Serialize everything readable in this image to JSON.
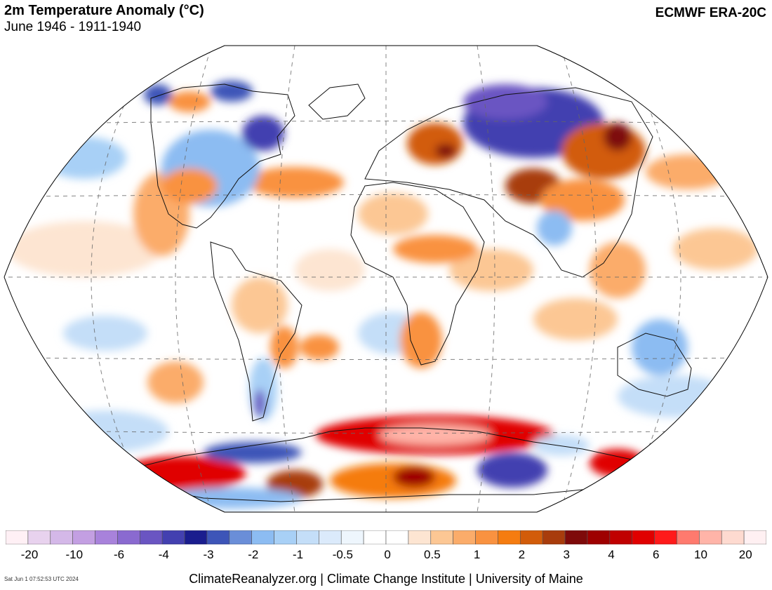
{
  "header": {
    "title": "2m Temperature Anomaly (°C)",
    "subtitle": "June 1946 - 1911-1940",
    "source": "ECMWF ERA-20C"
  },
  "legend": {
    "colors": [
      "#fff0f5",
      "#e8d2ee",
      "#d4b8e8",
      "#c39fe2",
      "#a882db",
      "#8a6ad0",
      "#6a55c2",
      "#4340b0",
      "#1a1d8e",
      "#3d55b8",
      "#6a8ed8",
      "#8cbcf2",
      "#a8d0f6",
      "#c4def8",
      "#dbeafb",
      "#eef6fd",
      "#ffffff",
      "#ffffff",
      "#fde5d2",
      "#fcc794",
      "#fbac6a",
      "#f99240",
      "#f57c10",
      "#d25c0a",
      "#a83c0c",
      "#7e0a0a",
      "#9e0000",
      "#c00000",
      "#e00000",
      "#ff1a1a",
      "#ff7a6e",
      "#ffb4a8",
      "#fedad0",
      "#fff0f2"
    ],
    "ticks": [
      "-20",
      "-10",
      "-6",
      "-4",
      "-3",
      "-2",
      "-1",
      "-0.5",
      "0",
      "0.5",
      "1",
      "2",
      "3",
      "4",
      "6",
      "10",
      "20"
    ]
  },
  "footer": {
    "credits": "ClimateReanalyzer.org | Climate Change Institute | University of Maine",
    "timestamp": "Sat Jun  1 07:52:53 UTC 2024"
  }
}
